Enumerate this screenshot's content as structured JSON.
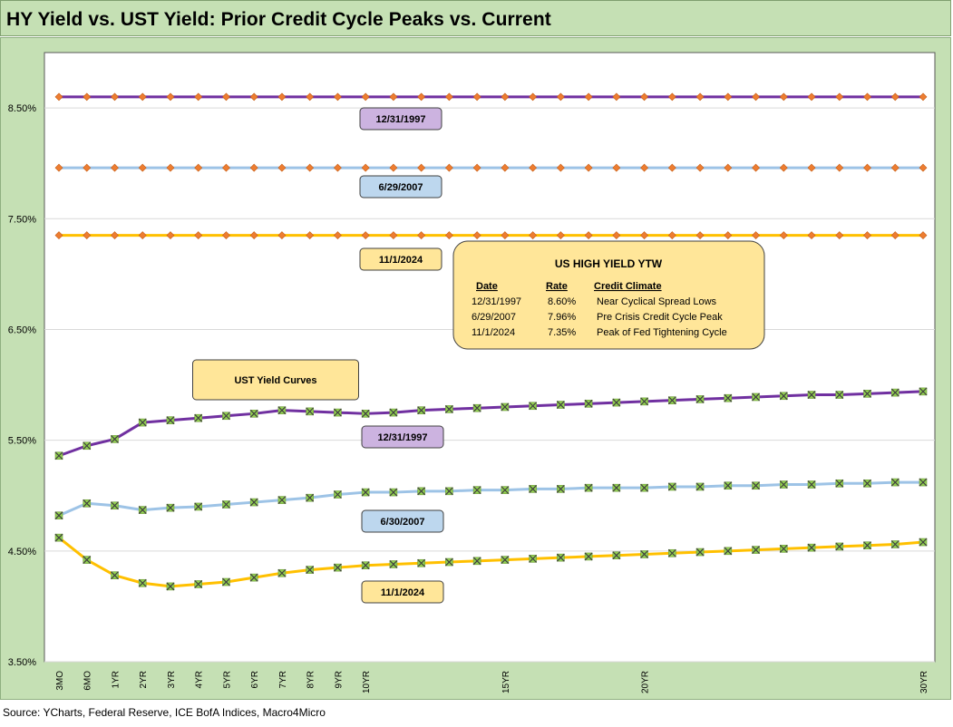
{
  "title": "HY Yield vs. UST Yield: Prior Credit Cycle Peaks vs. Current",
  "source": "Source: YCharts, Federal Reserve, ICE BofA Indices, Macro4Micro",
  "colors": {
    "panel_bg": "#c5e0b4",
    "plot_bg": "#ffffff",
    "purple": "#7030a0",
    "blue": "#9dc3e6",
    "gold": "#ffc000",
    "diamond_marker": "#ed7d31",
    "x_marker": "#92d050",
    "label_purple": "#ccb3e0",
    "label_blue": "#bdd7ee",
    "label_yellow": "#ffe699"
  },
  "chart_data": {
    "type": "line",
    "x_positions": [
      0.25,
      0.5,
      1,
      2,
      3,
      4,
      5,
      6,
      7,
      8,
      9,
      10,
      11,
      12,
      13,
      14,
      15,
      16,
      17,
      18,
      19,
      20,
      21,
      22,
      23,
      24,
      25,
      26,
      27,
      28,
      29,
      30
    ],
    "tick_labels": [
      {
        "label": "3MO",
        "index": 0
      },
      {
        "label": "6MO",
        "index": 1
      },
      {
        "label": "1YR",
        "index": 2
      },
      {
        "label": "2YR",
        "index": 3
      },
      {
        "label": "3YR",
        "index": 4
      },
      {
        "label": "4YR",
        "index": 5
      },
      {
        "label": "5YR",
        "index": 6
      },
      {
        "label": "6YR",
        "index": 7
      },
      {
        "label": "7YR",
        "index": 8
      },
      {
        "label": "8YR",
        "index": 9
      },
      {
        "label": "9YR",
        "index": 10
      },
      {
        "label": "10YR",
        "index": 11
      },
      {
        "label": "15YR",
        "index": 16
      },
      {
        "label": "20YR",
        "index": 21
      },
      {
        "label": "30YR",
        "index": 31
      }
    ],
    "yticks": [
      "3.50%",
      "4.50%",
      "5.50%",
      "6.50%",
      "7.50%",
      "8.50%"
    ],
    "ytick_values": [
      3.5,
      4.5,
      5.5,
      6.5,
      7.5,
      8.5
    ],
    "ylim": [
      3.5,
      9.0
    ],
    "grid": "horizontal",
    "hy_series": [
      {
        "label": "12/31/1997",
        "value": 8.6,
        "color": "purple"
      },
      {
        "label": "6/29/2007",
        "value": 7.96,
        "color": "blue"
      },
      {
        "label": "11/1/2024",
        "value": 7.35,
        "color": "gold"
      }
    ],
    "ust_series": [
      {
        "label": "12/31/1997",
        "color": "purple",
        "values": [
          5.36,
          5.45,
          5.51,
          5.66,
          5.68,
          5.7,
          5.72,
          5.74,
          5.77,
          5.76,
          5.75,
          5.74,
          5.75,
          5.77,
          5.78,
          5.79,
          5.8,
          5.81,
          5.82,
          5.83,
          5.84,
          5.85,
          5.86,
          5.87,
          5.88,
          5.89,
          5.9,
          5.91,
          5.91,
          5.92,
          5.93,
          5.94
        ]
      },
      {
        "label": "6/30/2007",
        "color": "blue",
        "values": [
          4.82,
          4.93,
          4.91,
          4.87,
          4.89,
          4.9,
          4.92,
          4.94,
          4.96,
          4.98,
          5.01,
          5.03,
          5.03,
          5.04,
          5.04,
          5.05,
          5.05,
          5.06,
          5.06,
          5.07,
          5.07,
          5.07,
          5.08,
          5.08,
          5.09,
          5.09,
          5.1,
          5.1,
          5.11,
          5.11,
          5.12,
          5.12
        ]
      },
      {
        "label": "11/1/2024",
        "color": "gold",
        "values": [
          4.62,
          4.42,
          4.28,
          4.21,
          4.18,
          4.2,
          4.22,
          4.26,
          4.3,
          4.33,
          4.35,
          4.37,
          4.38,
          4.39,
          4.4,
          4.41,
          4.42,
          4.43,
          4.44,
          4.45,
          4.46,
          4.47,
          4.48,
          4.49,
          4.5,
          4.51,
          4.52,
          4.53,
          4.54,
          4.55,
          4.56,
          4.58
        ]
      }
    ],
    "ust_box_label": "UST  Yield Curves",
    "info_box": {
      "title": "US HIGH YIELD YTW",
      "headers": [
        "Date",
        "Rate",
        "Credit Climate"
      ],
      "rows": [
        [
          "12/31/1997",
          "8.60%",
          "Near Cyclical Spread Lows"
        ],
        [
          "6/29/2007",
          "7.96%",
          "Pre Crisis Credit Cycle Peak"
        ],
        [
          "11/1/2024",
          "7.35%",
          "Peak of Fed Tightening Cycle"
        ]
      ]
    }
  }
}
